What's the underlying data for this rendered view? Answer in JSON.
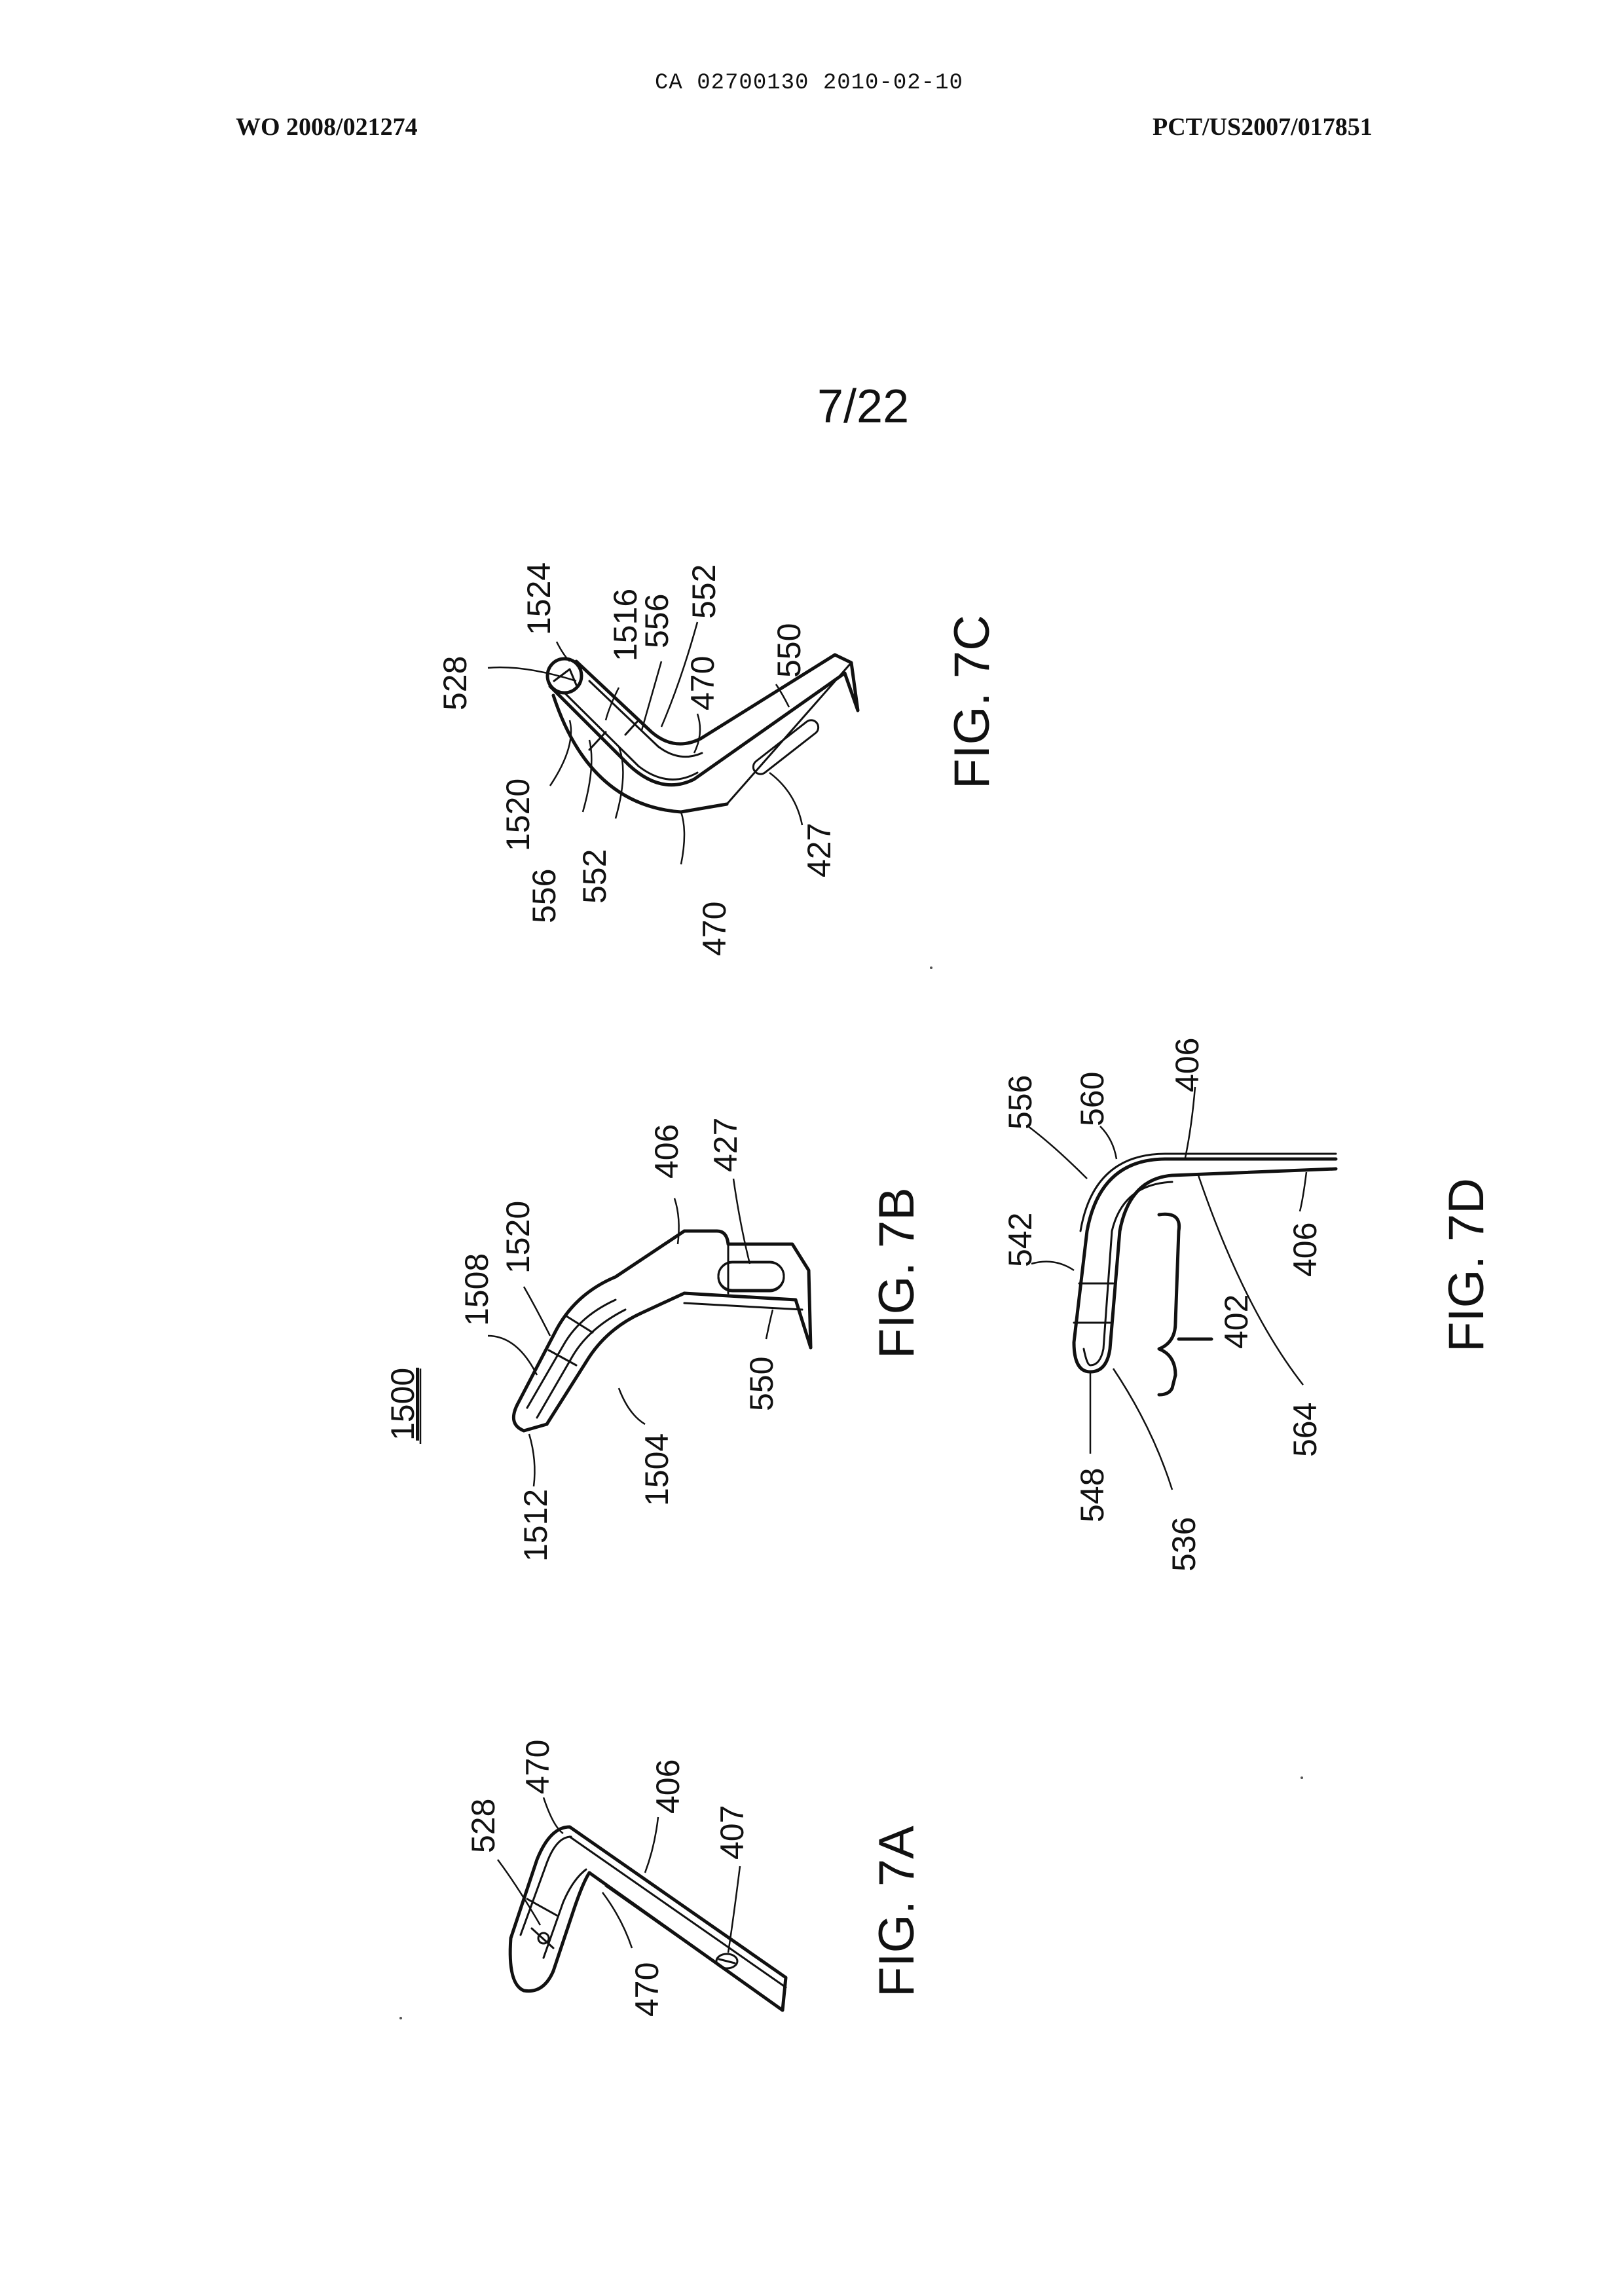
{
  "header": {
    "ca_number": "CA 02700130 2010-02-10",
    "wo_number": "WO 2008/021274",
    "pct_number": "PCT/US2007/017851",
    "sheet": "7/22"
  },
  "figures": {
    "fig7c": {
      "caption": "FIG. 7C",
      "labels": {
        "l528": "528",
        "l1524": "1524",
        "l1516": "1516",
        "l556a": "556",
        "l552a": "552",
        "l470a": "470",
        "l550": "550",
        "l1520": "1520",
        "l556b": "556",
        "l552b": "552",
        "l470b": "470",
        "l427": "427"
      }
    },
    "fig7b": {
      "caption": "FIG. 7B",
      "ref_number": "1500",
      "labels": {
        "l1508": "1508",
        "l1520": "1520",
        "l406": "406",
        "l427": "427",
        "l550": "550",
        "l1504": "1504",
        "l1512": "1512"
      }
    },
    "fig7d": {
      "caption": "FIG. 7D",
      "labels": {
        "l556": "556",
        "l560": "560",
        "l406a": "406",
        "l542": "542",
        "l406b": "406",
        "l402": "402",
        "l564": "564",
        "l548": "548",
        "l536": "536"
      }
    },
    "fig7a": {
      "caption": "FIG. 7A",
      "labels": {
        "l528": "528",
        "l470a": "470",
        "l406": "406",
        "l407": "407",
        "l470b": "470"
      }
    }
  }
}
